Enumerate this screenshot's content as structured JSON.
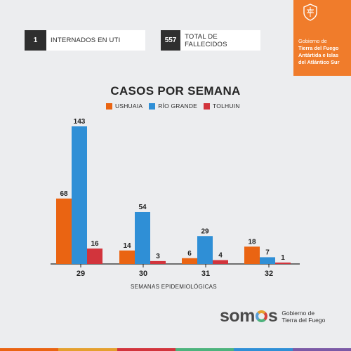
{
  "stats": [
    {
      "value": "1",
      "label": "INTERNADOS EN UTI"
    },
    {
      "value": "557",
      "label": "TOTAL DE FALLECIDOS"
    }
  ],
  "government": {
    "line1": "Gobierno de",
    "line2": "Tierra del Fuego",
    "line3": "Antártida e Islas",
    "line4": "del Atlántico Sur",
    "color": "#f07c2b"
  },
  "chart_data": {
    "type": "bar",
    "title": "CASOS POR SEMANA",
    "xlabel": "SEMANAS EPIDEMIOLÓGICAS",
    "ylabel": "",
    "categories": [
      "29",
      "30",
      "31",
      "32"
    ],
    "series": [
      {
        "name": "USHUAIA",
        "color": "#ea6412",
        "values": [
          68,
          14,
          6,
          18
        ]
      },
      {
        "name": "RÍO GRANDE",
        "color": "#2f8fd6",
        "values": [
          143,
          54,
          29,
          7
        ]
      },
      {
        "name": "TOLHUIN",
        "color": "#d2343c",
        "values": [
          16,
          3,
          4,
          1
        ]
      }
    ],
    "ylim": [
      0,
      150
    ],
    "grid": false,
    "legend_position": "top-center"
  },
  "footer": {
    "logo_pre": "som",
    "logo_post": "s",
    "sub1": "Gobierno de",
    "sub2": "Tierra del Fuego",
    "stripe_colors": [
      "#ea6412",
      "#e5a02e",
      "#d2343c",
      "#4db37d",
      "#2f8fd6",
      "#7b5aa6"
    ]
  }
}
